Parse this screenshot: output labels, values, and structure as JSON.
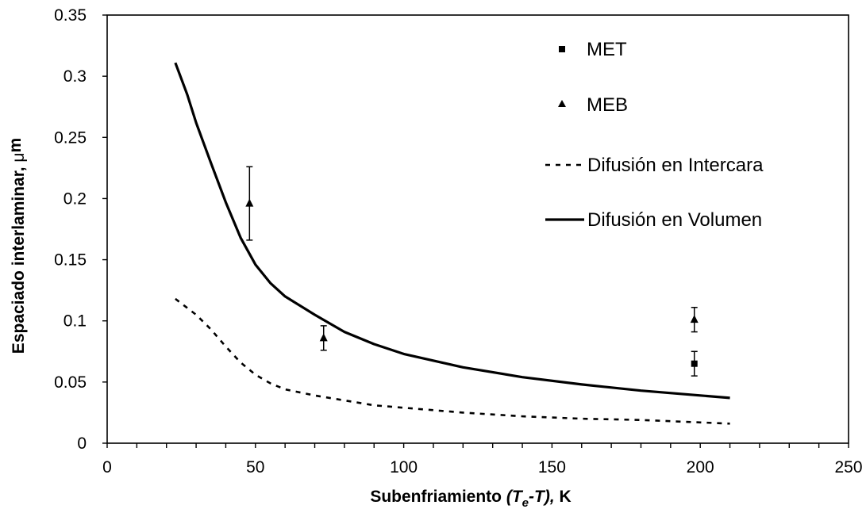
{
  "chart_data": {
    "type": "scatter",
    "xlabel": {
      "main": "Subenfriamiento ",
      "italic_a": "(T",
      "sub": "e",
      "italic_b": "-T),",
      "unit": " K"
    },
    "ylabel": {
      "main": "Espaciado interlaminar, ",
      "mu": "μ",
      "unit": "m"
    },
    "xlim": [
      0,
      250
    ],
    "ylim": [
      0,
      0.35
    ],
    "x_ticks": [
      {
        "value": 0,
        "label": "0"
      },
      {
        "value": 50,
        "label": "50"
      },
      {
        "value": 100,
        "label": "100"
      },
      {
        "value": 150,
        "label": "150"
      },
      {
        "value": 200,
        "label": "200"
      },
      {
        "value": 250,
        "label": "250"
      }
    ],
    "y_ticks": [
      {
        "value": 0,
        "label": "0"
      },
      {
        "value": 0.05,
        "label": "0.05"
      },
      {
        "value": 0.1,
        "label": "0.1"
      },
      {
        "value": 0.15,
        "label": "0.15"
      },
      {
        "value": 0.2,
        "label": "0.2"
      },
      {
        "value": 0.25,
        "label": "0.25"
      },
      {
        "value": 0.3,
        "label": "0.3"
      },
      {
        "value": 0.35,
        "label": "0.35"
      }
    ],
    "grid": false,
    "legend_position": "top-right",
    "series": [
      {
        "name": "MET",
        "kind": "points",
        "marker": "square",
        "points": [
          {
            "x": 198,
            "y": 0.065,
            "err": 0.01
          }
        ]
      },
      {
        "name": "MEB",
        "kind": "points",
        "marker": "triangle",
        "points": [
          {
            "x": 48,
            "y": 0.196,
            "err": 0.03
          },
          {
            "x": 73,
            "y": 0.086,
            "err": 0.01
          },
          {
            "x": 198,
            "y": 0.101,
            "err": 0.01
          }
        ]
      },
      {
        "name": "Difusión en Intercara",
        "kind": "line",
        "style": "dashed",
        "x": [
          23,
          30,
          35,
          40,
          45,
          50,
          55,
          60,
          70,
          80,
          90,
          100,
          120,
          140,
          160,
          180,
          200,
          210
        ],
        "y": [
          0.118,
          0.105,
          0.093,
          0.079,
          0.066,
          0.056,
          0.049,
          0.044,
          0.039,
          0.035,
          0.031,
          0.029,
          0.025,
          0.022,
          0.02,
          0.019,
          0.017,
          0.016
        ]
      },
      {
        "name": "Difusión en Volumen",
        "kind": "line",
        "style": "solid",
        "x": [
          23,
          27,
          30,
          35,
          40,
          45,
          50,
          55,
          60,
          70,
          80,
          90,
          100,
          120,
          140,
          160,
          180,
          200,
          210
        ],
        "y": [
          0.311,
          0.285,
          0.262,
          0.229,
          0.197,
          0.168,
          0.146,
          0.131,
          0.12,
          0.105,
          0.091,
          0.081,
          0.073,
          0.062,
          0.054,
          0.048,
          0.043,
          0.039,
          0.037
        ]
      }
    ]
  }
}
